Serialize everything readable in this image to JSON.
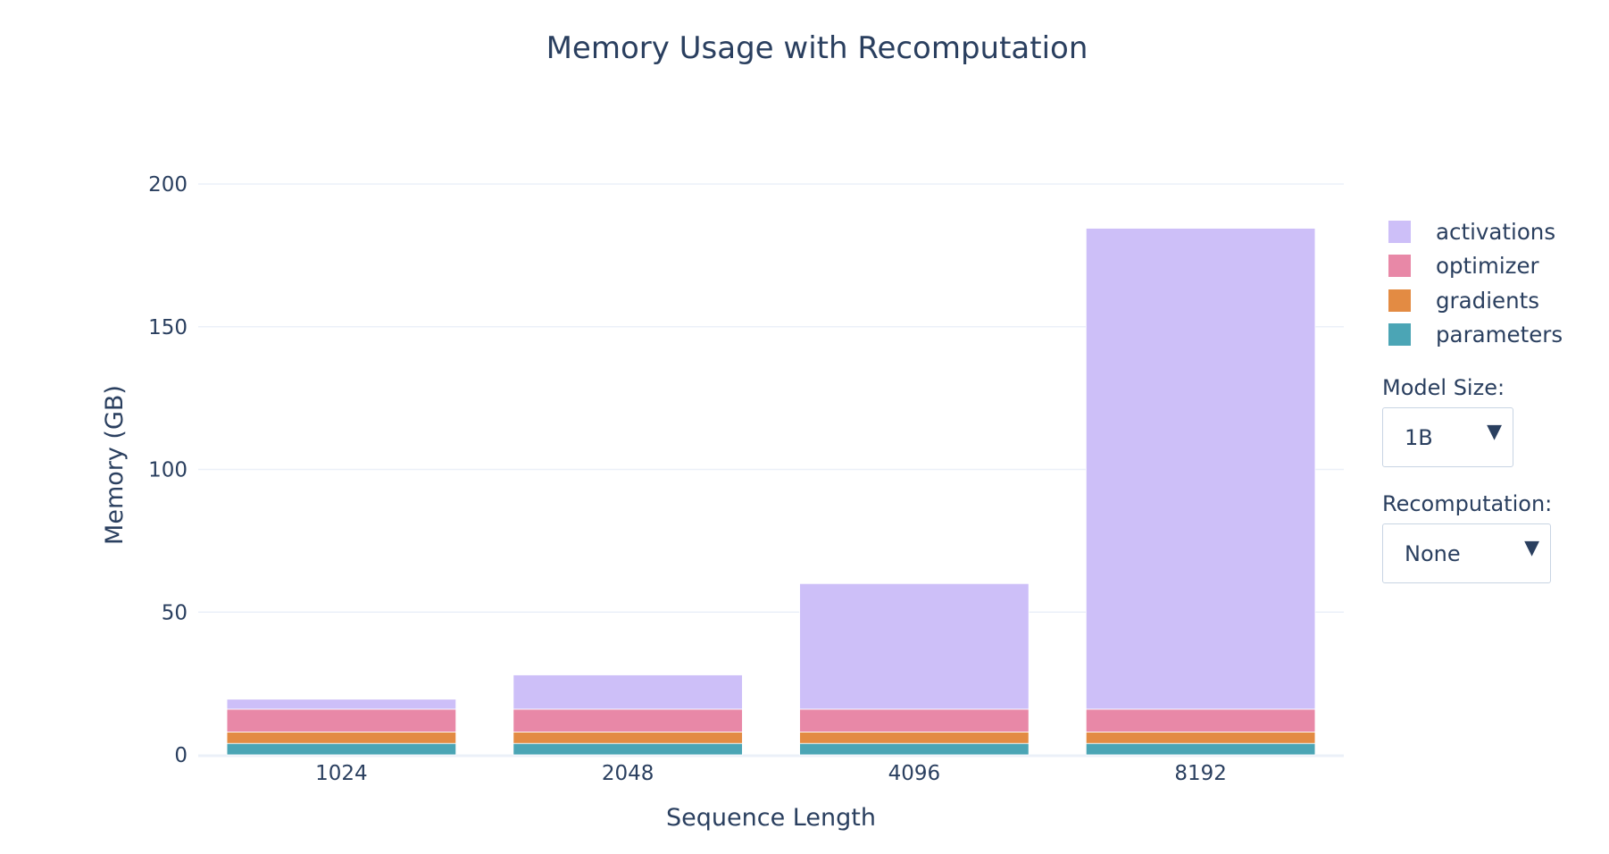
{
  "chart_data": {
    "type": "bar",
    "barmode": "stack",
    "title": "Memory Usage with Recomputation",
    "xlabel": "Sequence Length",
    "ylabel": "Memory (GB)",
    "categories": [
      "1024",
      "2048",
      "4096",
      "8192"
    ],
    "ylim": [
      0,
      220
    ],
    "yticks": [
      0,
      50,
      100,
      150,
      200
    ],
    "grid": true,
    "legend_position": "right",
    "series": [
      {
        "name": "parameters",
        "color": "#4ba5b5",
        "values": [
          4,
          4,
          4,
          4
        ]
      },
      {
        "name": "gradients",
        "color": "#e38b43",
        "values": [
          4,
          4,
          4,
          4
        ]
      },
      {
        "name": "optimizer",
        "color": "#e888a7",
        "values": [
          8,
          8,
          8,
          8
        ]
      },
      {
        "name": "activations",
        "color": "#cdbff8",
        "values": [
          3.5,
          12,
          44,
          168.5
        ]
      }
    ]
  },
  "controls": {
    "model_size": {
      "label": "Model Size:",
      "value": "1B"
    },
    "recomputation": {
      "label": "Recomputation:",
      "value": "None"
    }
  },
  "icons": {
    "dropdown_arrow": "triangle-down-icon",
    "arrow_glyph": "▼"
  }
}
